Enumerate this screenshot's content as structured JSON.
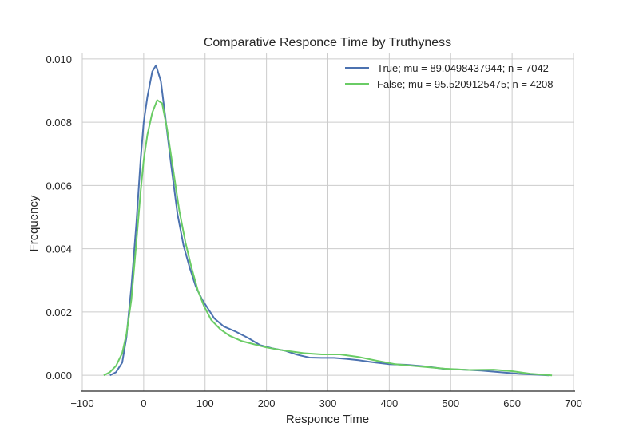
{
  "chart_data": {
    "type": "line",
    "title": "Comparative Responce Time by Truthyness",
    "xlabel": "Responce Time",
    "ylabel": "Frequency",
    "xlim": [
      -100,
      700
    ],
    "ylim": [
      -0.0005,
      0.0102
    ],
    "xticks": [
      -100,
      0,
      100,
      200,
      300,
      400,
      500,
      600,
      700
    ],
    "xtick_labels": [
      "−100",
      "0",
      "100",
      "200",
      "300",
      "400",
      "500",
      "600",
      "700"
    ],
    "yticks": [
      0.0,
      0.002,
      0.004,
      0.006,
      0.008,
      0.01
    ],
    "ytick_labels": [
      "0.000",
      "0.002",
      "0.004",
      "0.006",
      "0.008",
      "0.010"
    ],
    "grid": true,
    "legend_position": "top-right",
    "series": [
      {
        "name": "True; mu = 89.0498437944; n = 7042",
        "color": "#4c72b0",
        "x": [
          -55,
          -45,
          -35,
          -28,
          -20,
          -12,
          -5,
          0,
          6,
          14,
          20,
          28,
          35,
          45,
          55,
          65,
          75,
          85,
          95,
          105,
          115,
          130,
          150,
          170,
          190,
          210,
          230,
          250,
          270,
          290,
          310,
          330,
          350,
          370,
          400,
          430,
          460,
          490,
          520,
          550,
          580,
          610,
          640,
          660
        ],
        "y": [
          0.0,
          0.0001,
          0.0004,
          0.0012,
          0.0028,
          0.0048,
          0.0068,
          0.008,
          0.0088,
          0.0096,
          0.0098,
          0.0093,
          0.0082,
          0.0066,
          0.0051,
          0.0041,
          0.0034,
          0.0028,
          0.0024,
          0.0021,
          0.0018,
          0.00155,
          0.00138,
          0.00118,
          0.00095,
          0.00085,
          0.00078,
          0.00065,
          0.00056,
          0.00055,
          0.00055,
          0.00052,
          0.00048,
          0.00042,
          0.00035,
          0.00033,
          0.00028,
          0.0002,
          0.00018,
          0.00015,
          0.0001,
          5e-05,
          2e-05,
          0.0
        ]
      },
      {
        "name": "False; mu = 95.5209125475; n = 4208",
        "color": "#6acc65",
        "x": [
          -65,
          -55,
          -45,
          -35,
          -28,
          -20,
          -12,
          -5,
          0,
          6,
          14,
          22,
          30,
          38,
          48,
          58,
          68,
          78,
          88,
          98,
          110,
          125,
          140,
          160,
          180,
          200,
          230,
          260,
          290,
          320,
          350,
          380,
          410,
          450,
          490,
          530,
          570,
          600,
          630,
          665
        ],
        "y": [
          0.0,
          0.0001,
          0.0003,
          0.0007,
          0.0013,
          0.0024,
          0.0042,
          0.0058,
          0.0068,
          0.0076,
          0.0083,
          0.0087,
          0.0086,
          0.0078,
          0.0065,
          0.0052,
          0.0042,
          0.0034,
          0.0027,
          0.0022,
          0.00175,
          0.00145,
          0.00125,
          0.00108,
          0.00098,
          0.00088,
          0.00078,
          0.0007,
          0.00066,
          0.00066,
          0.00058,
          0.00046,
          0.00035,
          0.00028,
          0.00021,
          0.00017,
          0.00018,
          0.00013,
          5e-05,
          0.0
        ]
      }
    ]
  }
}
